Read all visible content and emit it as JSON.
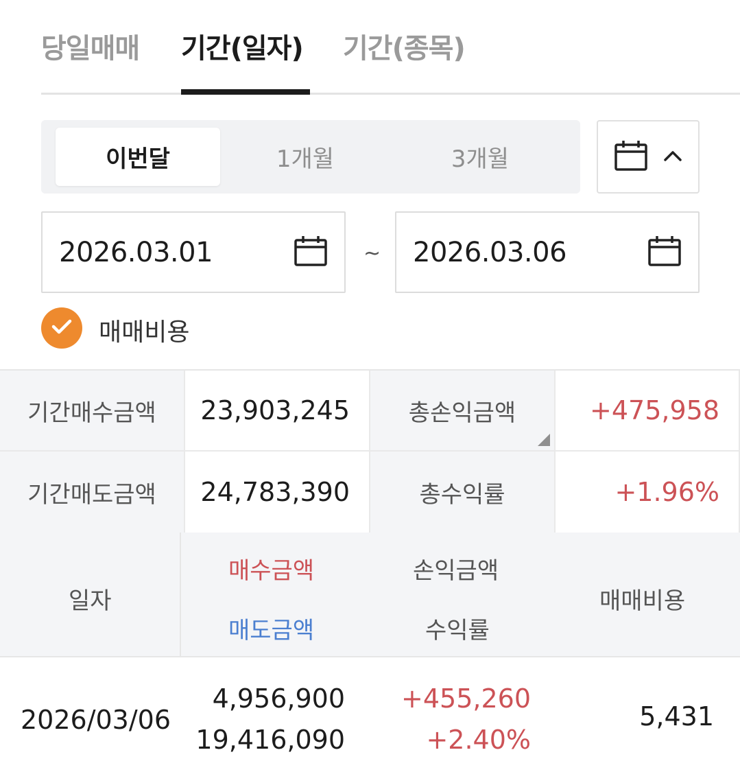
{
  "tabs": [
    {
      "label": "당일매매",
      "active": false
    },
    {
      "label": "기간(일자)",
      "active": true
    },
    {
      "label": "기간(종목)",
      "active": false
    }
  ],
  "period": {
    "options": [
      "이번달",
      "1개월",
      "3개월"
    ],
    "selected": "이번달",
    "calendar_toggle_icon": "calendar-icon",
    "chevron_icon": "chevron-up-icon"
  },
  "date_range": {
    "start": "2026.03.01",
    "separator": "~",
    "end": "2026.03.06"
  },
  "options": {
    "fee_label": "매매비용",
    "fee_checked": true
  },
  "summary": {
    "buy_label": "기간매수금액",
    "buy_value": "23,903,245",
    "pnl_label": "총손익금액",
    "pnl_value": "+475,958",
    "sell_label": "기간매도금액",
    "sell_value": "24,783,390",
    "return_label": "총수익률",
    "return_value": "+1.96%"
  },
  "table": {
    "headers": {
      "date": "일자",
      "buy": "매수금액",
      "sell": "매도금액",
      "pnl": "손익금액",
      "return": "수익률",
      "fee": "매매비용"
    },
    "rows": [
      {
        "date": "2026/03/06",
        "buy": "4,956,900",
        "sell": "19,416,090",
        "pnl": "+455,260",
        "return": "+2.40%",
        "fee": "5,431"
      }
    ]
  },
  "colors": {
    "accent_orange": "#ee8a2e",
    "profit_red": "#cc5256",
    "sell_blue": "#4b7fd0"
  }
}
